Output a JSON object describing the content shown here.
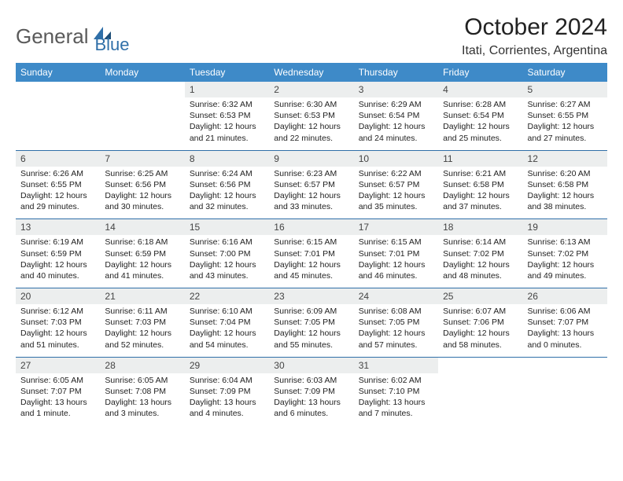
{
  "logo": {
    "text1": "General",
    "text2": "Blue"
  },
  "title": "October 2024",
  "location": "Itati, Corrientes, Argentina",
  "colors": {
    "header_bg": "#3e8ac8",
    "header_text": "#ffffff",
    "daynum_bg": "#eceeee",
    "rule": "#2f6fa8",
    "logo_gray": "#5a5a5a",
    "logo_blue": "#2f6fa8"
  },
  "day_headers": [
    "Sunday",
    "Monday",
    "Tuesday",
    "Wednesday",
    "Thursday",
    "Friday",
    "Saturday"
  ],
  "weeks": [
    [
      null,
      null,
      {
        "n": "1",
        "sr": "6:32 AM",
        "ss": "6:53 PM",
        "dl": "12 hours and 21 minutes."
      },
      {
        "n": "2",
        "sr": "6:30 AM",
        "ss": "6:53 PM",
        "dl": "12 hours and 22 minutes."
      },
      {
        "n": "3",
        "sr": "6:29 AM",
        "ss": "6:54 PM",
        "dl": "12 hours and 24 minutes."
      },
      {
        "n": "4",
        "sr": "6:28 AM",
        "ss": "6:54 PM",
        "dl": "12 hours and 25 minutes."
      },
      {
        "n": "5",
        "sr": "6:27 AM",
        "ss": "6:55 PM",
        "dl": "12 hours and 27 minutes."
      }
    ],
    [
      {
        "n": "6",
        "sr": "6:26 AM",
        "ss": "6:55 PM",
        "dl": "12 hours and 29 minutes."
      },
      {
        "n": "7",
        "sr": "6:25 AM",
        "ss": "6:56 PM",
        "dl": "12 hours and 30 minutes."
      },
      {
        "n": "8",
        "sr": "6:24 AM",
        "ss": "6:56 PM",
        "dl": "12 hours and 32 minutes."
      },
      {
        "n": "9",
        "sr": "6:23 AM",
        "ss": "6:57 PM",
        "dl": "12 hours and 33 minutes."
      },
      {
        "n": "10",
        "sr": "6:22 AM",
        "ss": "6:57 PM",
        "dl": "12 hours and 35 minutes."
      },
      {
        "n": "11",
        "sr": "6:21 AM",
        "ss": "6:58 PM",
        "dl": "12 hours and 37 minutes."
      },
      {
        "n": "12",
        "sr": "6:20 AM",
        "ss": "6:58 PM",
        "dl": "12 hours and 38 minutes."
      }
    ],
    [
      {
        "n": "13",
        "sr": "6:19 AM",
        "ss": "6:59 PM",
        "dl": "12 hours and 40 minutes."
      },
      {
        "n": "14",
        "sr": "6:18 AM",
        "ss": "6:59 PM",
        "dl": "12 hours and 41 minutes."
      },
      {
        "n": "15",
        "sr": "6:16 AM",
        "ss": "7:00 PM",
        "dl": "12 hours and 43 minutes."
      },
      {
        "n": "16",
        "sr": "6:15 AM",
        "ss": "7:01 PM",
        "dl": "12 hours and 45 minutes."
      },
      {
        "n": "17",
        "sr": "6:15 AM",
        "ss": "7:01 PM",
        "dl": "12 hours and 46 minutes."
      },
      {
        "n": "18",
        "sr": "6:14 AM",
        "ss": "7:02 PM",
        "dl": "12 hours and 48 minutes."
      },
      {
        "n": "19",
        "sr": "6:13 AM",
        "ss": "7:02 PM",
        "dl": "12 hours and 49 minutes."
      }
    ],
    [
      {
        "n": "20",
        "sr": "6:12 AM",
        "ss": "7:03 PM",
        "dl": "12 hours and 51 minutes."
      },
      {
        "n": "21",
        "sr": "6:11 AM",
        "ss": "7:03 PM",
        "dl": "12 hours and 52 minutes."
      },
      {
        "n": "22",
        "sr": "6:10 AM",
        "ss": "7:04 PM",
        "dl": "12 hours and 54 minutes."
      },
      {
        "n": "23",
        "sr": "6:09 AM",
        "ss": "7:05 PM",
        "dl": "12 hours and 55 minutes."
      },
      {
        "n": "24",
        "sr": "6:08 AM",
        "ss": "7:05 PM",
        "dl": "12 hours and 57 minutes."
      },
      {
        "n": "25",
        "sr": "6:07 AM",
        "ss": "7:06 PM",
        "dl": "12 hours and 58 minutes."
      },
      {
        "n": "26",
        "sr": "6:06 AM",
        "ss": "7:07 PM",
        "dl": "13 hours and 0 minutes."
      }
    ],
    [
      {
        "n": "27",
        "sr": "6:05 AM",
        "ss": "7:07 PM",
        "dl": "13 hours and 1 minute."
      },
      {
        "n": "28",
        "sr": "6:05 AM",
        "ss": "7:08 PM",
        "dl": "13 hours and 3 minutes."
      },
      {
        "n": "29",
        "sr": "6:04 AM",
        "ss": "7:09 PM",
        "dl": "13 hours and 4 minutes."
      },
      {
        "n": "30",
        "sr": "6:03 AM",
        "ss": "7:09 PM",
        "dl": "13 hours and 6 minutes."
      },
      {
        "n": "31",
        "sr": "6:02 AM",
        "ss": "7:10 PM",
        "dl": "13 hours and 7 minutes."
      },
      null,
      null
    ]
  ],
  "labels": {
    "sunrise": "Sunrise:",
    "sunset": "Sunset:",
    "daylight": "Daylight:"
  }
}
